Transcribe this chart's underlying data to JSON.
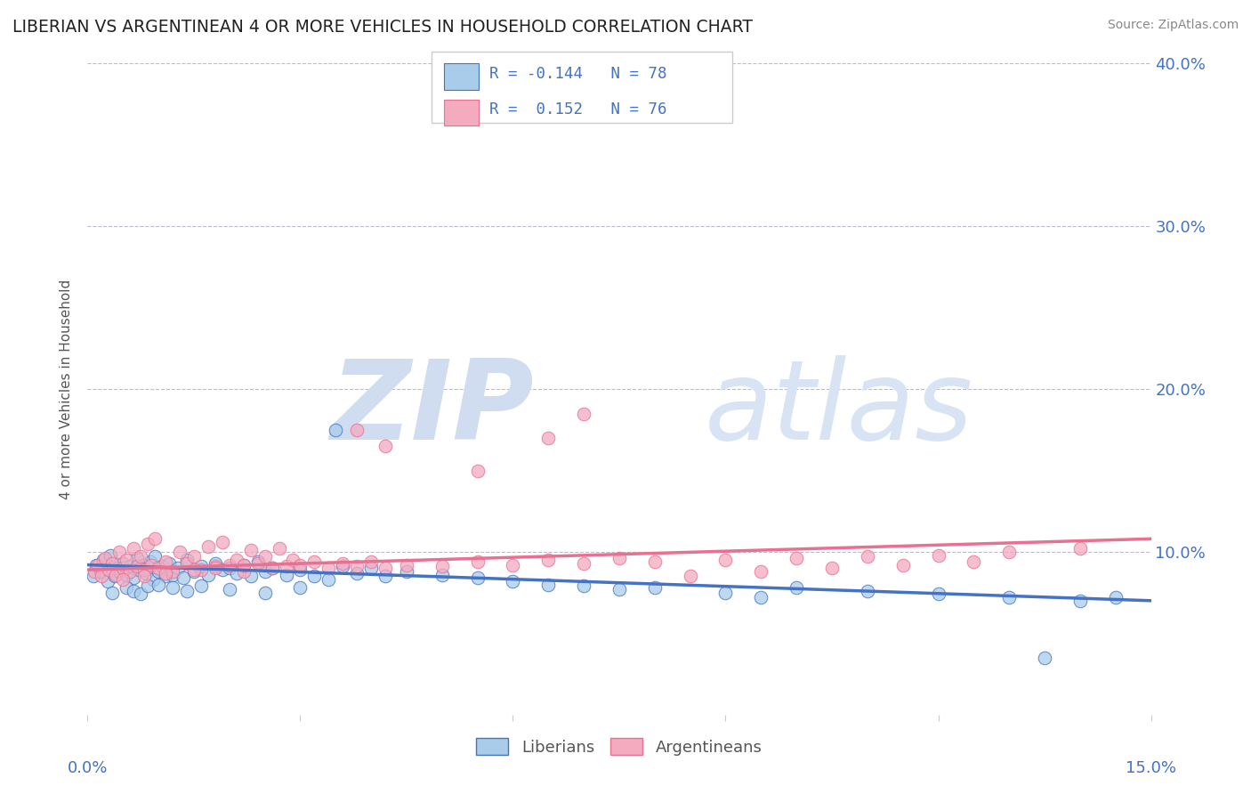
{
  "title": "LIBERIAN VS ARGENTINEAN 4 OR MORE VEHICLES IN HOUSEHOLD CORRELATION CHART",
  "source": "Source: ZipAtlas.com",
  "ylabel": "4 or more Vehicles in Household",
  "xlim": [
    0.0,
    15.0
  ],
  "ylim": [
    0.0,
    40.0
  ],
  "color_blue": "#A8CCEA",
  "color_pink": "#F4AABF",
  "color_blue_dark": "#4472C4",
  "color_pink_dark": "#E87090",
  "color_text_blue": "#4472C4",
  "blue_x": [
    0.08,
    0.12,
    0.18,
    0.22,
    0.28,
    0.32,
    0.38,
    0.42,
    0.45,
    0.5,
    0.55,
    0.6,
    0.65,
    0.7,
    0.72,
    0.78,
    0.82,
    0.88,
    0.92,
    0.95,
    1.0,
    1.05,
    1.1,
    1.15,
    1.2,
    1.28,
    1.35,
    1.4,
    1.5,
    1.6,
    1.7,
    1.8,
    1.9,
    2.0,
    2.1,
    2.2,
    2.3,
    2.4,
    2.5,
    2.6,
    2.8,
    3.0,
    3.2,
    3.4,
    3.5,
    3.6,
    3.8,
    4.0,
    4.2,
    4.5,
    5.0,
    5.5,
    6.0,
    6.5,
    7.0,
    7.5,
    8.0,
    9.0,
    9.5,
    10.0,
    11.0,
    12.0,
    13.0,
    13.5,
    14.0,
    14.5,
    0.35,
    0.55,
    0.65,
    0.75,
    0.85,
    1.0,
    1.2,
    1.4,
    1.6,
    2.0,
    2.5,
    3.0
  ],
  "blue_y": [
    8.5,
    9.2,
    8.8,
    9.5,
    8.2,
    9.8,
    8.5,
    9.0,
    8.8,
    9.3,
    8.6,
    9.1,
    8.4,
    9.6,
    8.9,
    9.2,
    8.7,
    9.4,
    8.3,
    9.7,
    8.8,
    9.1,
    8.5,
    9.3,
    8.6,
    9.0,
    8.4,
    9.5,
    8.8,
    9.1,
    8.6,
    9.3,
    8.9,
    9.0,
    8.7,
    9.2,
    8.5,
    9.4,
    8.8,
    9.0,
    8.6,
    8.9,
    8.5,
    8.3,
    17.5,
    9.1,
    8.7,
    9.0,
    8.5,
    8.8,
    8.6,
    8.4,
    8.2,
    8.0,
    7.9,
    7.7,
    7.8,
    7.5,
    7.2,
    7.8,
    7.6,
    7.4,
    7.2,
    3.5,
    7.0,
    7.2,
    7.5,
    7.8,
    7.6,
    7.4,
    7.9,
    8.0,
    7.8,
    7.6,
    7.9,
    7.7,
    7.5,
    7.8
  ],
  "pink_x": [
    0.1,
    0.15,
    0.2,
    0.25,
    0.3,
    0.35,
    0.4,
    0.45,
    0.5,
    0.55,
    0.6,
    0.65,
    0.7,
    0.75,
    0.8,
    0.85,
    0.9,
    0.95,
    1.0,
    1.1,
    1.2,
    1.3,
    1.4,
    1.5,
    1.6,
    1.7,
    1.8,
    1.9,
    2.0,
    2.1,
    2.2,
    2.3,
    2.4,
    2.5,
    2.6,
    2.7,
    2.8,
    2.9,
    3.0,
    3.2,
    3.4,
    3.6,
    3.8,
    4.0,
    4.2,
    4.5,
    5.0,
    5.5,
    6.0,
    6.5,
    7.0,
    7.5,
    8.0,
    9.0,
    10.0,
    11.0,
    12.0,
    13.0,
    14.0,
    3.8,
    4.2,
    5.5,
    6.5,
    7.0,
    8.5,
    9.5,
    10.5,
    11.5,
    12.5,
    0.5,
    0.8,
    1.1,
    1.5,
    1.8,
    2.2
  ],
  "pink_y": [
    8.8,
    9.2,
    8.5,
    9.6,
    8.9,
    9.3,
    8.6,
    10.0,
    9.0,
    9.5,
    8.8,
    10.2,
    9.1,
    9.7,
    8.9,
    10.5,
    9.2,
    10.8,
    9.0,
    9.4,
    8.8,
    10.0,
    9.3,
    9.7,
    8.9,
    10.3,
    9.1,
    10.6,
    9.2,
    9.5,
    8.8,
    10.1,
    9.3,
    9.7,
    9.0,
    10.2,
    9.1,
    9.5,
    9.2,
    9.4,
    9.0,
    9.3,
    9.1,
    9.4,
    9.0,
    9.2,
    9.1,
    9.4,
    9.2,
    9.5,
    9.3,
    9.6,
    9.4,
    9.5,
    9.6,
    9.7,
    9.8,
    10.0,
    10.2,
    17.5,
    16.5,
    15.0,
    17.0,
    18.5,
    8.5,
    8.8,
    9.0,
    9.2,
    9.4,
    8.3,
    8.5,
    8.7,
    8.9,
    9.0,
    9.2
  ],
  "blue_trend_x": [
    0.0,
    15.0
  ],
  "blue_trend_y": [
    9.2,
    7.0
  ],
  "pink_trend_x": [
    0.0,
    15.0
  ],
  "pink_trend_y": [
    8.9,
    10.8
  ]
}
